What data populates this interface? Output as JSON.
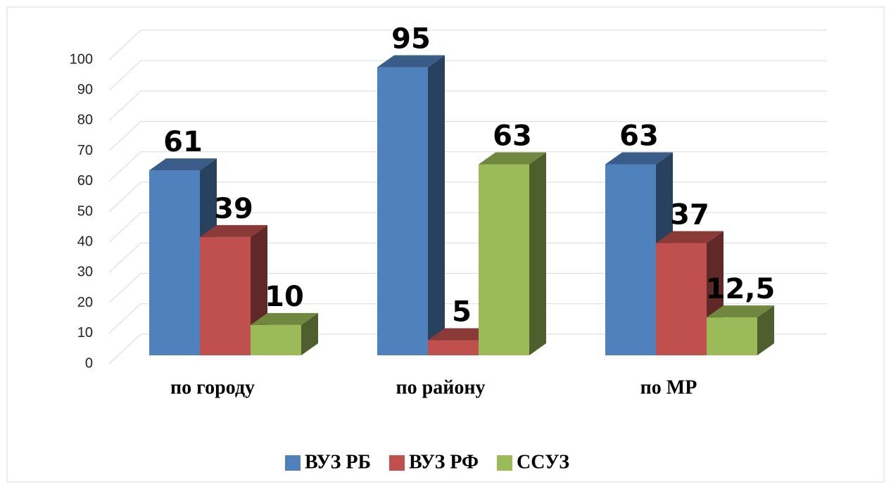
{
  "chart_data": {
    "type": "bar3d",
    "categories": [
      "по городу",
      "по району",
      "по МР"
    ],
    "series": [
      {
        "name": "ВУЗ РБ",
        "color": "#4f81bd",
        "values": [
          61,
          95,
          63
        ]
      },
      {
        "name": "ВУЗ РФ",
        "color": "#c0504d",
        "values": [
          39,
          5,
          37
        ]
      },
      {
        "name": "ССУЗ",
        "color": "#9bbb59",
        "values": [
          10,
          63,
          12.5
        ],
        "value_labels": [
          "10",
          "63",
          "12,5"
        ]
      }
    ],
    "ylim": [
      0,
      100
    ],
    "yticks": [
      0,
      10,
      20,
      30,
      40,
      50,
      60,
      70,
      80,
      90,
      100
    ],
    "grid": true,
    "legend": "bottom"
  }
}
